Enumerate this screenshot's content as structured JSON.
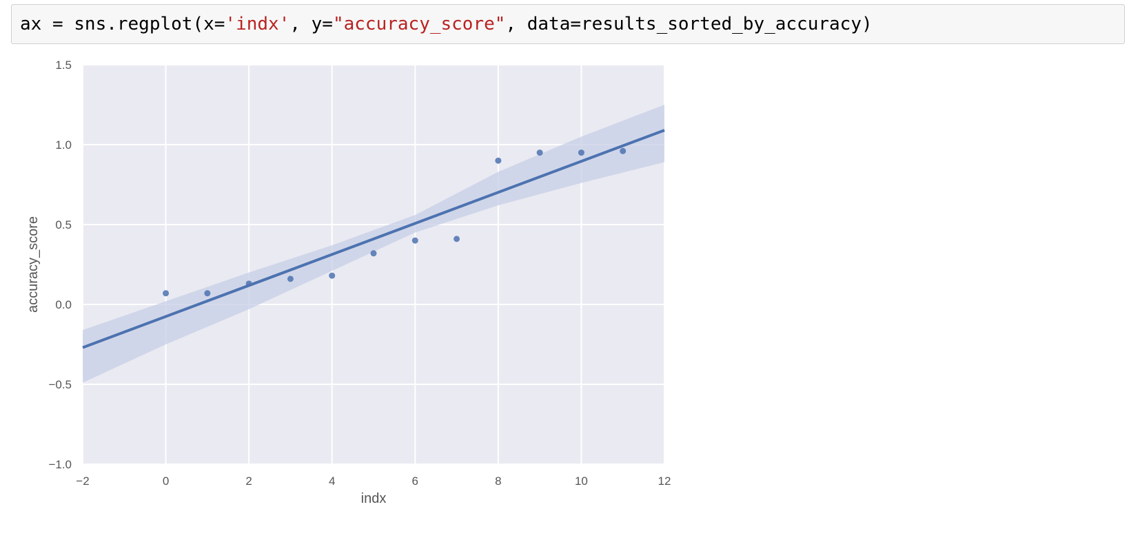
{
  "code_cell": {
    "tokens": [
      {
        "text": "ax = sns.regplot(x=",
        "kind": "plain"
      },
      {
        "text": "'indx'",
        "kind": "string"
      },
      {
        "text": ", y=",
        "kind": "plain"
      },
      {
        "text": "\"accuracy_score\"",
        "kind": "string"
      },
      {
        "text": ", data=results_sorted_by_accuracy)",
        "kind": "plain"
      }
    ]
  },
  "colors": {
    "axes_background": "#eaeaf2",
    "grid": "#ffffff",
    "series": "#4c72b0",
    "ci_band": "#c7cfe6",
    "string_literal": "#ba2121",
    "tick_label": "#555555"
  },
  "chart_data": {
    "type": "scatter",
    "title": "",
    "xlabel": "indx",
    "ylabel": "accuracy_score",
    "xlim": [
      -2,
      12
    ],
    "ylim": [
      -1.0,
      1.5
    ],
    "xticks": [
      -2,
      0,
      2,
      4,
      6,
      8,
      10,
      12
    ],
    "xtick_labels": [
      "−2",
      "0",
      "2",
      "4",
      "6",
      "8",
      "10",
      "12"
    ],
    "yticks": [
      -1.0,
      -0.5,
      0.0,
      0.5,
      1.0,
      1.5
    ],
    "ytick_labels": [
      "−1.0",
      "−0.5",
      "0.0",
      "0.5",
      "1.0",
      "1.5"
    ],
    "grid": true,
    "points": {
      "x": [
        0,
        1,
        2,
        3,
        4,
        5,
        6,
        7,
        8,
        9,
        10,
        11
      ],
      "y": [
        0.07,
        0.07,
        0.13,
        0.16,
        0.18,
        0.32,
        0.4,
        0.41,
        0.9,
        0.95,
        0.95,
        0.96
      ]
    },
    "regression_line": {
      "x": [
        -2,
        12
      ],
      "y": [
        -0.27,
        1.09
      ]
    },
    "confidence_band": {
      "x": [
        -2,
        0,
        2,
        4,
        6,
        8,
        10,
        12
      ],
      "upper": [
        -0.16,
        0.02,
        0.2,
        0.37,
        0.56,
        0.83,
        1.05,
        1.25
      ],
      "lower": [
        -0.49,
        -0.25,
        -0.03,
        0.21,
        0.45,
        0.62,
        0.76,
        0.89
      ]
    }
  }
}
